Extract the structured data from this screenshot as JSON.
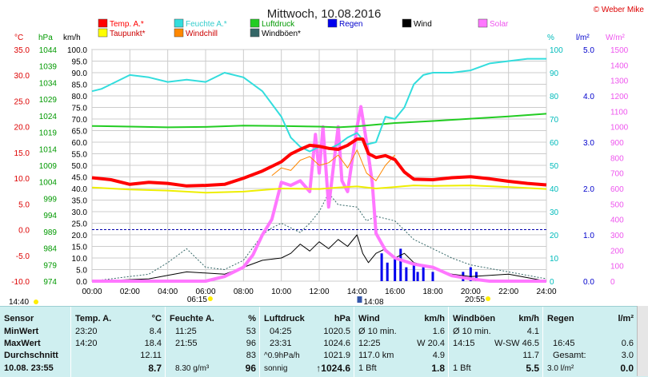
{
  "title": "Mittwoch, 10.08.2016",
  "credit": "© Weber Mike",
  "axes": {
    "temp_unit": "°C",
    "press_unit": "hPa",
    "wind_unit": "km/h",
    "hum_unit": "%",
    "rain_unit": "l/m²",
    "solar_unit": "W/m²"
  },
  "legend": [
    {
      "name": "Temp. A.*",
      "color": "#ff0000",
      "text_color": "#ff0000"
    },
    {
      "name": "Feuchte A.*",
      "color": "#33dddd",
      "text_color": "#33cccc"
    },
    {
      "name": "Luftdruck",
      "color": "#22cc22",
      "text_color": "#009900"
    },
    {
      "name": "Regen",
      "color": "#0000ee",
      "text_color": "#0000cc"
    },
    {
      "name": "Wind",
      "color": "#000000",
      "text_color": "#000000"
    },
    {
      "name": "Solar",
      "color": "#ff77ff",
      "text_color": "#ee55ee"
    },
    {
      "name": "Taupunkt*",
      "color": "#ffff00",
      "text_color": "#cc0000"
    },
    {
      "name": "Windchill",
      "color": "#ff8800",
      "text_color": "#cc0000"
    },
    {
      "name": "Windböen*",
      "color": "#336666",
      "text_color": "#000000"
    }
  ],
  "astro": {
    "moonset": "14:40",
    "sunrise": "06:15",
    "moonrise": "14:08",
    "sunset": "20:55"
  },
  "chart_data": {
    "type": "line",
    "x_ticks": [
      "00:00",
      "02:00",
      "04:00",
      "06:00",
      "08:00",
      "10:00",
      "12:00",
      "14:00",
      "16:00",
      "18:00",
      "20:00",
      "22:00",
      "24:00"
    ],
    "xlim": [
      0,
      24
    ],
    "y_axes": {
      "temp": {
        "ticks": [
          "35.0",
          "30.0",
          "25.0",
          "20.0",
          "15.0",
          "10.0",
          "5.0",
          "0.0",
          "-5.0",
          "-10.0"
        ],
        "ylim": [
          -10,
          35
        ]
      },
      "pressure": {
        "ticks": [
          "1044",
          "1039",
          "1034",
          "1029",
          "1024",
          "1019",
          "1014",
          "1009",
          "1004",
          "999",
          "994",
          "989",
          "984",
          "979",
          "974"
        ],
        "ylim": [
          974,
          1044
        ]
      },
      "wind": {
        "ticks": [
          "100.0",
          "95.0",
          "90.0",
          "85.0",
          "80.0",
          "75.0",
          "70.0",
          "65.0",
          "60.0",
          "55.0",
          "50.0",
          "45.0",
          "40.0",
          "35.0",
          "30.0",
          "25.0",
          "20.0",
          "15.0",
          "10.0",
          "5.0",
          "0.0"
        ],
        "ylim": [
          0,
          100
        ]
      },
      "humidity": {
        "ticks": [
          "100",
          "90",
          "80",
          "70",
          "60",
          "50",
          "40",
          "30",
          "20",
          "10",
          "0"
        ],
        "ylim": [
          0,
          100
        ]
      },
      "rain": {
        "ticks": [
          "5.0",
          "4.0",
          "3.0",
          "2.0",
          "1.0",
          "0.0"
        ],
        "ylim": [
          0,
          5
        ]
      },
      "solar": {
        "ticks": [
          "1500",
          "1400",
          "1300",
          "1200",
          "1100",
          "1000",
          "900",
          "800",
          "700",
          "600",
          "500",
          "400",
          "300",
          "200",
          "100",
          "0"
        ],
        "ylim": [
          0,
          1500
        ]
      }
    },
    "series": [
      {
        "name": "Temp. A.*",
        "axis": "temp",
        "x": [
          0,
          1,
          2,
          3,
          4,
          5,
          6,
          7,
          8,
          9,
          10,
          10.5,
          11,
          11.5,
          12,
          12.5,
          13,
          13.5,
          14,
          14.3,
          14.6,
          15,
          15.5,
          16,
          16.5,
          17,
          18,
          19,
          20,
          21,
          22,
          23,
          24
        ],
        "values": [
          10.1,
          9.7,
          8.8,
          9.2,
          9.0,
          8.5,
          8.6,
          8.8,
          10.0,
          11.4,
          13.2,
          14.7,
          15.6,
          16.4,
          16.2,
          15.8,
          15.6,
          16.4,
          17.6,
          17.6,
          14.8,
          14.0,
          14.4,
          13.6,
          11.2,
          9.8,
          9.7,
          10.1,
          10.3,
          9.9,
          9.4,
          9.0,
          8.7
        ]
      },
      {
        "name": "Feuchte A.*",
        "axis": "humidity",
        "x": [
          0,
          0.5,
          1,
          2,
          3,
          4,
          5,
          6,
          7,
          8,
          9,
          10,
          10.5,
          11,
          11.5,
          12,
          12.5,
          13,
          13.5,
          14,
          14.5,
          15,
          15.5,
          16,
          16.5,
          17,
          17.5,
          18,
          19,
          20,
          21,
          22,
          23,
          24
        ],
        "values": [
          82,
          83,
          85,
          89,
          88,
          86,
          87,
          86,
          90,
          88,
          82,
          71,
          62,
          58,
          56,
          58,
          57,
          59,
          62,
          64,
          59,
          60,
          71,
          70,
          75,
          85,
          89,
          90,
          90,
          91,
          94,
          95,
          96,
          96
        ]
      },
      {
        "name": "Luftdruck",
        "axis": "pressure",
        "x": [
          0,
          2,
          4,
          6,
          8,
          10,
          12,
          13,
          14,
          16,
          18,
          20,
          22,
          24
        ],
        "values": [
          1020.9,
          1020.7,
          1020.5,
          1020.6,
          1021.0,
          1020.9,
          1020.7,
          1020.5,
          1020.8,
          1021.8,
          1022.4,
          1023.1,
          1023.8,
          1024.6
        ]
      },
      {
        "name": "Taupunkt*",
        "axis": "temp",
        "x": [
          0,
          2,
          4,
          6,
          8,
          10,
          12,
          13,
          14,
          15,
          16,
          17,
          18,
          20,
          22,
          24
        ],
        "values": [
          8.2,
          7.8,
          7.6,
          7.2,
          7.4,
          8.0,
          7.9,
          8.2,
          8.4,
          8.0,
          8.3,
          8.6,
          8.5,
          8.6,
          8.3,
          7.9
        ]
      },
      {
        "name": "Windchill",
        "axis": "temp",
        "x": [
          9.5,
          10,
          10.5,
          11,
          11.5,
          12,
          12.5,
          13,
          13.5,
          14,
          14.5,
          15,
          15.5,
          16
        ],
        "values": [
          10.5,
          12.0,
          11.5,
          13.5,
          14.2,
          12.5,
          13.0,
          14.5,
          12.0,
          15.5,
          11.0,
          9.5,
          12.5,
          14.5
        ]
      },
      {
        "name": "Solar",
        "axis": "solar",
        "x": [
          0,
          6,
          7,
          8,
          8.5,
          9,
          9.5,
          10,
          10.5,
          11,
          11.5,
          11.8,
          12,
          12.2,
          12.5,
          13,
          13.2,
          13.5,
          14,
          14.2,
          14.5,
          14.8,
          15,
          15.5,
          16,
          17,
          18,
          19,
          20,
          21,
          24
        ],
        "values": [
          0,
          0,
          30,
          90,
          170,
          300,
          400,
          640,
          620,
          650,
          580,
          950,
          700,
          1000,
          480,
          1000,
          650,
          580,
          1000,
          1130,
          900,
          640,
          310,
          200,
          150,
          110,
          90,
          35,
          15,
          0,
          0
        ]
      },
      {
        "name": "Wind",
        "axis": "wind",
        "x": [
          0,
          3,
          5,
          7,
          8,
          9,
          10,
          10.5,
          11,
          11.5,
          12,
          12.5,
          13,
          13.5,
          14,
          14.3,
          14.6,
          15,
          15.5,
          16,
          16.5,
          17,
          18,
          19,
          20,
          22,
          24
        ],
        "values": [
          0,
          1,
          4,
          3,
          6,
          9,
          10,
          12,
          16,
          13,
          17,
          14,
          18,
          15,
          20,
          12,
          8,
          12,
          14,
          10,
          12,
          8,
          6,
          3,
          2,
          3,
          0
        ]
      },
      {
        "name": "Windböen*",
        "axis": "wind",
        "x": [
          0,
          3,
          4,
          5,
          6,
          7,
          8,
          9,
          9.5,
          10,
          11,
          11.5,
          12,
          12.5,
          13,
          14,
          14.5,
          15,
          16,
          17,
          18,
          19,
          20,
          22,
          24
        ],
        "values": [
          0,
          3,
          8,
          14,
          6,
          5,
          9,
          20,
          23,
          25,
          21,
          25,
          30,
          38,
          33,
          32,
          26,
          28,
          26,
          18,
          14,
          10,
          7,
          4,
          1
        ]
      },
      {
        "name": "Regen",
        "axis": "rain",
        "x": [
          15.3,
          15.6,
          16,
          16.3,
          16.6,
          17,
          17.2,
          17.5,
          18,
          19.6,
          20,
          20.3
        ],
        "values": [
          0.6,
          0.4,
          0.5,
          0.7,
          0.3,
          0.4,
          0.2,
          0.3,
          0.2,
          0.2,
          0.3,
          0.2
        ]
      }
    ]
  },
  "table": {
    "row_labels": [
      "Sensor",
      "MinWert",
      "MaxWert",
      "Durchschnitt",
      "10.08. 23:55"
    ],
    "temp": {
      "header": "Temp. A.",
      "unit": "°C",
      "min_time": "23:20",
      "min": "8.4",
      "max_time": "14:20",
      "max": "18.4",
      "avg": "12.11",
      "current": "8.7"
    },
    "humidity": {
      "header": "Feuchte A.",
      "unit": "%",
      "min_time": "11:25",
      "min": "53",
      "max_time": "21:55",
      "max": "96",
      "avg": "83",
      "abs": "8.30 g/m³",
      "current": "96"
    },
    "pressure": {
      "header": "Luftdruck",
      "unit": "hPa",
      "min_time": "04:25",
      "min": "1020.5",
      "max_time": "23:31",
      "max": "1024.6",
      "trend": "^0.9hPa/h",
      "avg": "1021.9",
      "forecast": "sonnig",
      "current": "↑1024.6"
    },
    "wind": {
      "header": "Wind",
      "unit": "km/h",
      "avg10": "Ø 10 min.",
      "avg10_val": "1.6",
      "max_time": "12:25",
      "max_dir": "W 20.4",
      "run": "117.0 km",
      "run_val": "4.9",
      "bft": "1 Bft",
      "current": "1.8"
    },
    "gusts": {
      "header": "Windböen",
      "unit": "km/h",
      "avg10": "Ø 10 min.",
      "avg10_val": "4.1",
      "max_time": "14:15",
      "max_dir": "W-SW 46.5",
      "avg": "11.7",
      "bft": "1 Bft",
      "current": "5.5"
    },
    "rain": {
      "header": "Regen",
      "unit": "l/m²",
      "max_time": "16:45",
      "max": "0.6",
      "total_label": "Gesamt:",
      "total": "3.0",
      "current_label": "3.0 l/m²",
      "current": "0.0"
    }
  }
}
